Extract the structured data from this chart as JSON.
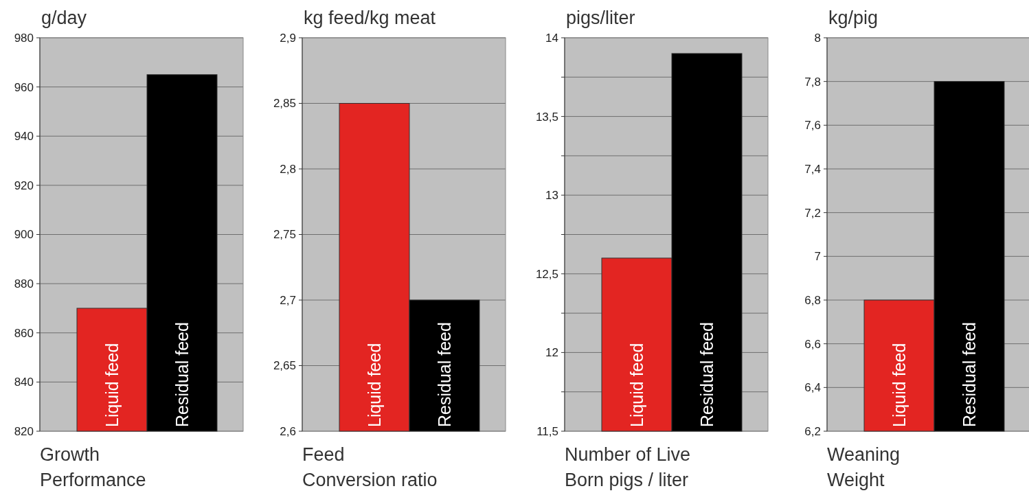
{
  "chart_data": [
    {
      "type": "bar",
      "ylabel": "g/day",
      "xlabel": "Growth\nPerformance",
      "categories": [
        "Liquid feed",
        "Residual feed"
      ],
      "values": [
        870,
        965
      ],
      "colors": [
        "#e32522",
        "#000000"
      ],
      "ylim": [
        820,
        980
      ],
      "yticks": [
        820,
        840,
        860,
        880,
        900,
        920,
        940,
        960,
        980
      ],
      "grid": "y"
    },
    {
      "type": "bar",
      "ylabel": "kg feed/kg meat",
      "xlabel": "Feed\nConversion ratio",
      "categories": [
        "Liquid feed",
        "Residual feed"
      ],
      "values": [
        2.85,
        2.7
      ],
      "colors": [
        "#e32522",
        "#000000"
      ],
      "ylim": [
        2.6,
        2.9
      ],
      "yticks": [
        {
          "value": 2.6,
          "label": "2,6"
        },
        {
          "value": 2.65,
          "label": "2,65"
        },
        {
          "value": 2.7,
          "label": "2,7"
        },
        {
          "value": 2.75,
          "label": "2,75"
        },
        {
          "value": 2.8,
          "label": "2,8"
        },
        {
          "value": 2.85,
          "label": "2,85"
        },
        {
          "value": 2.9,
          "label": "2,9"
        }
      ],
      "grid": "y"
    },
    {
      "type": "bar",
      "ylabel": "pigs/liter",
      "xlabel": "Number of Live\nBorn pigs / liter",
      "categories": [
        "Liquid feed",
        "Residual feed"
      ],
      "values": [
        12.6,
        13.9
      ],
      "colors": [
        "#e32522",
        "#000000"
      ],
      "ylim": [
        11.5,
        14
      ],
      "yticks": [
        {
          "value": 11.5,
          "label": "11,5"
        },
        {
          "value": 11.75,
          "label": null
        },
        {
          "value": 12,
          "label": "12"
        },
        {
          "value": 12.25,
          "label": null
        },
        {
          "value": 12.5,
          "label": "12,5"
        },
        {
          "value": 12.75,
          "label": null
        },
        {
          "value": 13,
          "label": "13"
        },
        {
          "value": 13.25,
          "label": null
        },
        {
          "value": 13.5,
          "label": "13,5"
        },
        {
          "value": 13.75,
          "label": null
        },
        {
          "value": 14,
          "label": "14"
        }
      ],
      "grid": "y"
    },
    {
      "type": "bar",
      "ylabel": "kg/pig",
      "xlabel": "Weaning\nWeight",
      "categories": [
        "Liquid feed",
        "Residual feed"
      ],
      "values": [
        6.8,
        7.8
      ],
      "colors": [
        "#e32522",
        "#000000"
      ],
      "ylim": [
        6.2,
        8
      ],
      "yticks": [
        {
          "value": 6.2,
          "label": "6,2"
        },
        {
          "value": 6.4,
          "label": "6,4"
        },
        {
          "value": 6.6,
          "label": "6,6"
        },
        {
          "value": 6.8,
          "label": "6,8"
        },
        {
          "value": 7,
          "label": "7"
        },
        {
          "value": 7.2,
          "label": "7,2"
        },
        {
          "value": 7.4,
          "label": "7,4"
        },
        {
          "value": 7.6,
          "label": "7,6"
        },
        {
          "value": 7.8,
          "label": "7,8"
        },
        {
          "value": 8,
          "label": "8"
        }
      ],
      "grid": "y"
    }
  ]
}
